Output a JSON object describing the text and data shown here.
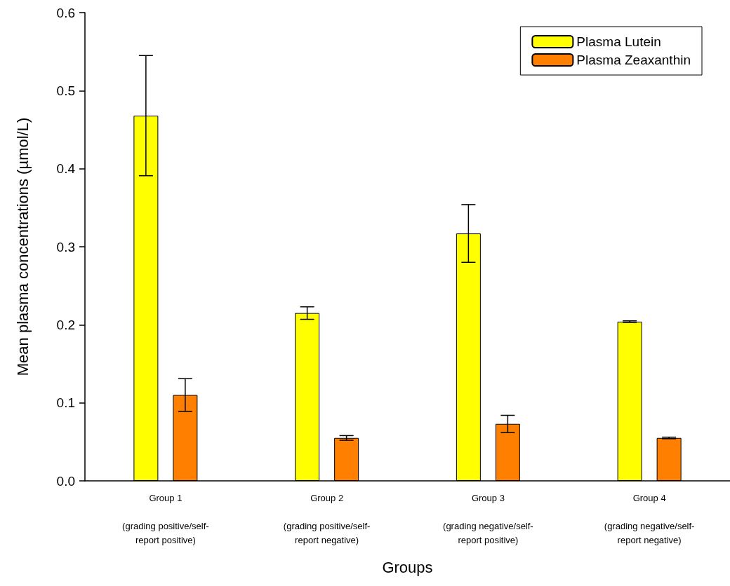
{
  "chart_data": {
    "type": "bar",
    "categories": [
      "Group 1\n\n(grading positive/self-\nreport positive)",
      "Group 2\n\n(grading positive/self-\nreport negative)",
      "Group 3\n\n(grading negative/self-\nreport positive)",
      "Group 4\n\n(grading negative/self-\nreport negative)"
    ],
    "series": [
      {
        "name": "Plasma Lutein",
        "color": "#ffff00",
        "values": [
          0.468,
          0.215,
          0.317,
          0.204
        ],
        "errors": [
          0.077,
          0.008,
          0.037,
          0.001
        ]
      },
      {
        "name": "Plasma Zeaxanthin",
        "color": "#ff8000",
        "values": [
          0.11,
          0.055,
          0.073,
          0.055
        ],
        "errors": [
          0.021,
          0.003,
          0.011,
          0.001
        ]
      }
    ],
    "xlabel": "Groups",
    "ylabel": "Mean plasma concentrations (µmol/L)",
    "ylim": [
      0,
      0.6
    ],
    "yticks": [
      {
        "value": 0,
        "label": "0.0"
      },
      0.1,
      0.2,
      0.3,
      0.4,
      0.5,
      0.6
    ],
    "grid": false,
    "legend": "top right"
  }
}
